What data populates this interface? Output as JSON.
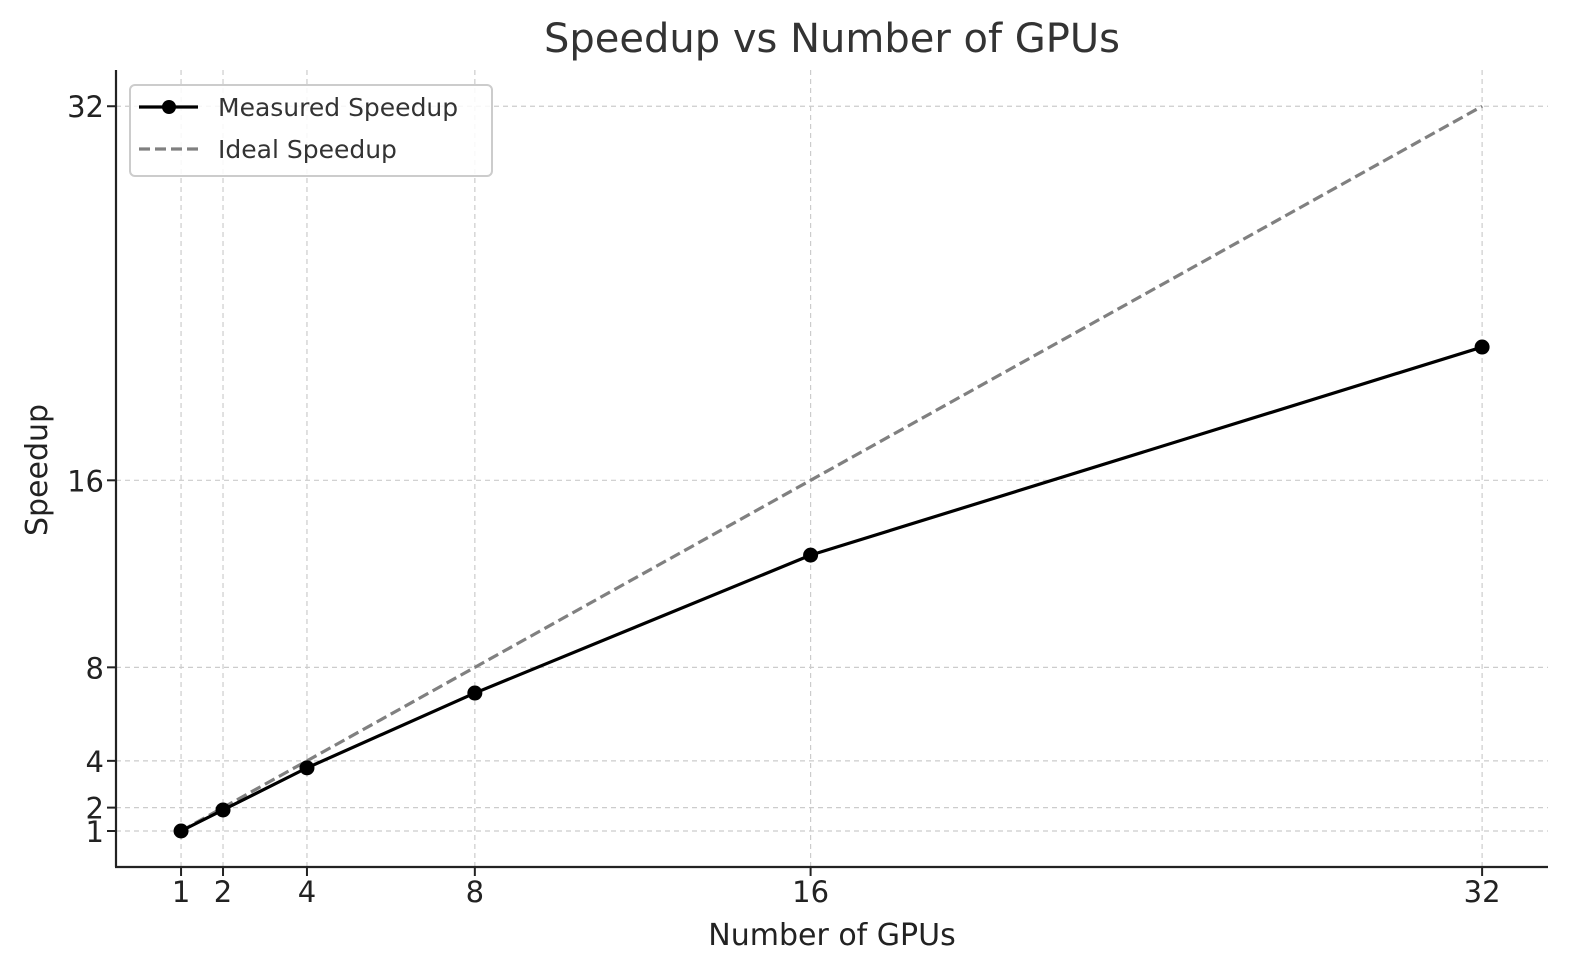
{
  "chart_data": {
    "type": "line",
    "title": "Speedup vs Number of GPUs",
    "xlabel": "Number of GPUs",
    "ylabel": "Speedup",
    "x": [
      1,
      2,
      4,
      8,
      16,
      32
    ],
    "xticks": [
      1,
      2,
      4,
      8,
      16,
      32
    ],
    "yticks": [
      1,
      2,
      4,
      8,
      16,
      32
    ],
    "xlim": [
      -0.55,
      33.57
    ],
    "ylim": [
      -0.54,
      33.55
    ],
    "grid": true,
    "legend_position": "upper left",
    "series": [
      {
        "name": "Measured Speedup",
        "values": [
          1,
          1.9,
          3.7,
          6.9,
          12.8,
          21.7
        ],
        "color": "#000000",
        "style": "solid",
        "marker": "circle"
      },
      {
        "name": "Ideal Speedup",
        "values": [
          1,
          2,
          4,
          8,
          16,
          32
        ],
        "color": "#808080",
        "style": "dashed",
        "marker": "none"
      }
    ]
  },
  "colors": {
    "grid": "#cccccc",
    "axis": "#222222",
    "legend_border": "#cccccc"
  }
}
